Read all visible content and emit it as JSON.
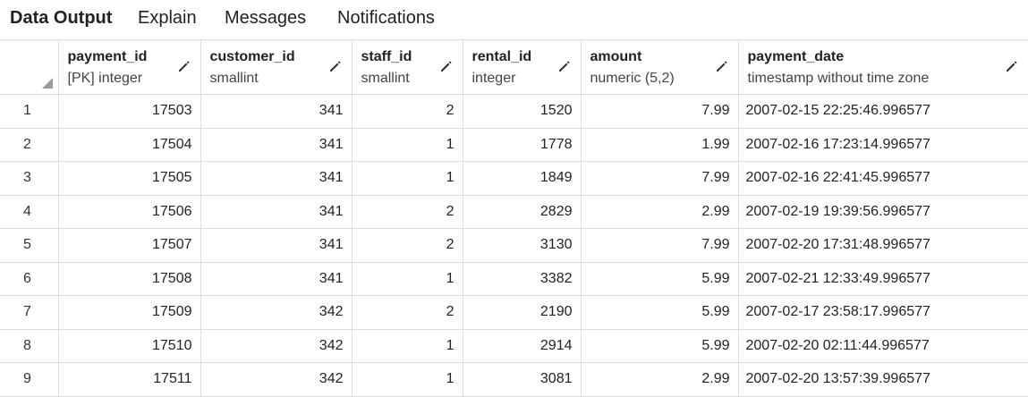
{
  "tabs": [
    {
      "label": "Data Output",
      "active": true
    },
    {
      "label": "Explain",
      "active": false
    },
    {
      "label": "Messages",
      "active": false
    },
    {
      "label": "Notifications",
      "active": false
    }
  ],
  "columns": [
    {
      "name": "payment_id",
      "type": "[PK] integer"
    },
    {
      "name": "customer_id",
      "type": "smallint"
    },
    {
      "name": "staff_id",
      "type": "smallint"
    },
    {
      "name": "rental_id",
      "type": "integer"
    },
    {
      "name": "amount",
      "type": "numeric (5,2)"
    },
    {
      "name": "payment_date",
      "type": "timestamp without time zone"
    }
  ],
  "icons": {
    "edit": "pencil-icon",
    "corner": "select-all-corner-icon"
  },
  "rows": [
    {
      "n": "1",
      "payment_id": "17503",
      "customer_id": "341",
      "staff_id": "2",
      "rental_id": "1520",
      "amount": "7.99",
      "payment_date": "2007-02-15 22:25:46.996577"
    },
    {
      "n": "2",
      "payment_id": "17504",
      "customer_id": "341",
      "staff_id": "1",
      "rental_id": "1778",
      "amount": "1.99",
      "payment_date": "2007-02-16 17:23:14.996577"
    },
    {
      "n": "3",
      "payment_id": "17505",
      "customer_id": "341",
      "staff_id": "1",
      "rental_id": "1849",
      "amount": "7.99",
      "payment_date": "2007-02-16 22:41:45.996577"
    },
    {
      "n": "4",
      "payment_id": "17506",
      "customer_id": "341",
      "staff_id": "2",
      "rental_id": "2829",
      "amount": "2.99",
      "payment_date": "2007-02-19 19:39:56.996577"
    },
    {
      "n": "5",
      "payment_id": "17507",
      "customer_id": "341",
      "staff_id": "2",
      "rental_id": "3130",
      "amount": "7.99",
      "payment_date": "2007-02-20 17:31:48.996577"
    },
    {
      "n": "6",
      "payment_id": "17508",
      "customer_id": "341",
      "staff_id": "1",
      "rental_id": "3382",
      "amount": "5.99",
      "payment_date": "2007-02-21 12:33:49.996577"
    },
    {
      "n": "7",
      "payment_id": "17509",
      "customer_id": "342",
      "staff_id": "2",
      "rental_id": "2190",
      "amount": "5.99",
      "payment_date": "2007-02-17 23:58:17.996577"
    },
    {
      "n": "8",
      "payment_id": "17510",
      "customer_id": "342",
      "staff_id": "1",
      "rental_id": "2914",
      "amount": "5.99",
      "payment_date": "2007-02-20 02:11:44.996577"
    },
    {
      "n": "9",
      "payment_id": "17511",
      "customer_id": "342",
      "staff_id": "1",
      "rental_id": "3081",
      "amount": "2.99",
      "payment_date": "2007-02-20 13:57:39.996577"
    }
  ]
}
